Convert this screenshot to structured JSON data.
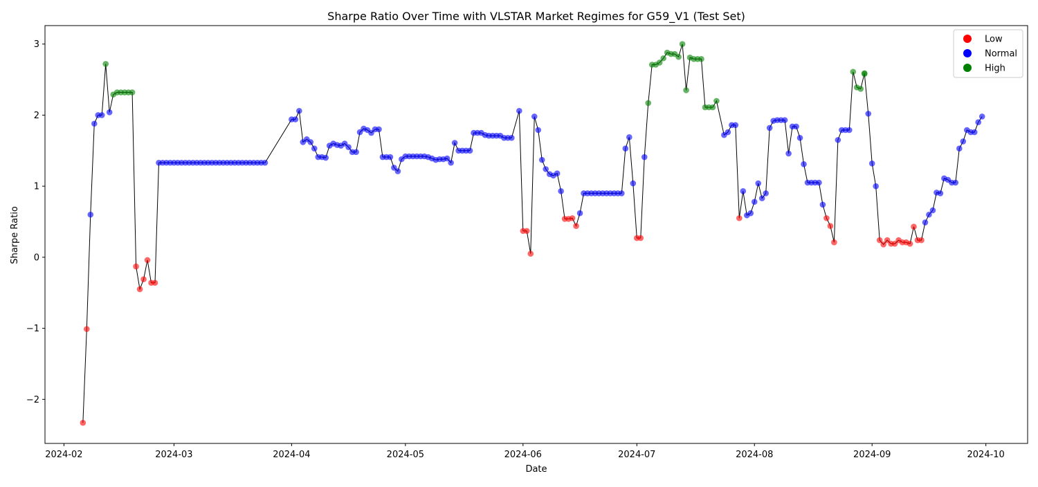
{
  "chart_data": {
    "type": "scatter",
    "title": "Sharpe Ratio Over Time with VLSTAR Market Regimes for G59_V1 (Test Set)",
    "xlabel": "Date",
    "ylabel": "Sharpe Ratio",
    "ylim": [
      -2.62,
      3.26
    ],
    "xlim": [
      "2024-01-27",
      "2024-10-12"
    ],
    "y_ticks": [
      -2,
      -1,
      0,
      1,
      2,
      3
    ],
    "y_tick_labels": [
      "−2",
      "−1",
      "0",
      "1",
      "2",
      "3"
    ],
    "x_ticks": [
      "2024-02-01",
      "2024-03-01",
      "2024-04-01",
      "2024-05-01",
      "2024-06-01",
      "2024-07-01",
      "2024-08-01",
      "2024-09-01",
      "2024-10-01"
    ],
    "x_tick_labels": [
      "2024-02",
      "2024-03",
      "2024-04",
      "2024-05",
      "2024-06",
      "2024-07",
      "2024-08",
      "2024-09",
      "2024-10"
    ],
    "grid": false,
    "legend_position": "top-right",
    "line_color": "#000000",
    "regimes": [
      {
        "name": "Low",
        "color": "#ff0000"
      },
      {
        "name": "Normal",
        "color": "#0000ff"
      },
      {
        "name": "High",
        "color": "#008000"
      }
    ],
    "series": [
      {
        "name": "Low",
        "color": "#ff0000",
        "points": [
          [
            "2024-02-06",
            -2.33
          ],
          [
            "2024-02-07",
            -1.01
          ],
          [
            "2024-02-20",
            -0.13
          ],
          [
            "2024-02-21",
            -0.45
          ],
          [
            "2024-02-22",
            -0.31
          ],
          [
            "2024-02-23",
            -0.04
          ],
          [
            "2024-02-24",
            -0.36
          ],
          [
            "2024-02-25",
            -0.36
          ],
          [
            "2024-06-01",
            0.37
          ],
          [
            "2024-06-02",
            0.37
          ],
          [
            "2024-06-03",
            0.05
          ],
          [
            "2024-06-12",
            0.54
          ],
          [
            "2024-06-13",
            0.54
          ],
          [
            "2024-06-14",
            0.55
          ],
          [
            "2024-06-15",
            0.44
          ],
          [
            "2024-07-01",
            0.27
          ],
          [
            "2024-07-02",
            0.27
          ],
          [
            "2024-07-28",
            0.55
          ],
          [
            "2024-08-20",
            0.55
          ],
          [
            "2024-08-21",
            0.44
          ],
          [
            "2024-08-22",
            0.21
          ],
          [
            "2024-09-03",
            0.24
          ],
          [
            "2024-09-04",
            0.18
          ],
          [
            "2024-09-05",
            0.24
          ],
          [
            "2024-09-06",
            0.19
          ],
          [
            "2024-09-07",
            0.19
          ],
          [
            "2024-09-08",
            0.24
          ],
          [
            "2024-09-09",
            0.21
          ],
          [
            "2024-09-10",
            0.21
          ],
          [
            "2024-09-11",
            0.19
          ],
          [
            "2024-09-12",
            0.43
          ],
          [
            "2024-09-13",
            0.24
          ],
          [
            "2024-09-14",
            0.24
          ]
        ]
      },
      {
        "name": "Normal",
        "color": "#0000ff",
        "points": [
          [
            "2024-02-08",
            0.6
          ],
          [
            "2024-02-09",
            1.88
          ],
          [
            "2024-02-10",
            2.0
          ],
          [
            "2024-02-11",
            2.0
          ],
          [
            "2024-02-13",
            2.04
          ],
          [
            "2024-02-26",
            1.33
          ],
          [
            "2024-02-27",
            1.33
          ],
          [
            "2024-02-28",
            1.33
          ],
          [
            "2024-02-29",
            1.33
          ],
          [
            "2024-03-01",
            1.33
          ],
          [
            "2024-03-02",
            1.33
          ],
          [
            "2024-03-03",
            1.33
          ],
          [
            "2024-03-04",
            1.33
          ],
          [
            "2024-03-05",
            1.33
          ],
          [
            "2024-03-06",
            1.33
          ],
          [
            "2024-03-07",
            1.33
          ],
          [
            "2024-03-08",
            1.33
          ],
          [
            "2024-03-09",
            1.33
          ],
          [
            "2024-03-10",
            1.33
          ],
          [
            "2024-03-11",
            1.33
          ],
          [
            "2024-03-12",
            1.33
          ],
          [
            "2024-03-13",
            1.33
          ],
          [
            "2024-03-14",
            1.33
          ],
          [
            "2024-03-15",
            1.33
          ],
          [
            "2024-03-16",
            1.33
          ],
          [
            "2024-03-17",
            1.33
          ],
          [
            "2024-03-18",
            1.33
          ],
          [
            "2024-03-19",
            1.33
          ],
          [
            "2024-03-20",
            1.33
          ],
          [
            "2024-03-21",
            1.33
          ],
          [
            "2024-03-22",
            1.33
          ],
          [
            "2024-03-23",
            1.33
          ],
          [
            "2024-03-24",
            1.33
          ],
          [
            "2024-03-25",
            1.33
          ],
          [
            "2024-04-01",
            1.94
          ],
          [
            "2024-04-02",
            1.94
          ],
          [
            "2024-04-03",
            2.06
          ],
          [
            "2024-04-04",
            1.62
          ],
          [
            "2024-04-05",
            1.66
          ],
          [
            "2024-04-06",
            1.62
          ],
          [
            "2024-04-07",
            1.53
          ],
          [
            "2024-04-08",
            1.41
          ],
          [
            "2024-04-09",
            1.41
          ],
          [
            "2024-04-10",
            1.4
          ],
          [
            "2024-04-11",
            1.57
          ],
          [
            "2024-04-12",
            1.6
          ],
          [
            "2024-04-13",
            1.58
          ],
          [
            "2024-04-14",
            1.57
          ],
          [
            "2024-04-15",
            1.6
          ],
          [
            "2024-04-16",
            1.55
          ],
          [
            "2024-04-17",
            1.48
          ],
          [
            "2024-04-18",
            1.48
          ],
          [
            "2024-04-19",
            1.76
          ],
          [
            "2024-04-20",
            1.81
          ],
          [
            "2024-04-21",
            1.79
          ],
          [
            "2024-04-22",
            1.75
          ],
          [
            "2024-04-23",
            1.8
          ],
          [
            "2024-04-24",
            1.8
          ],
          [
            "2024-04-25",
            1.41
          ],
          [
            "2024-04-26",
            1.41
          ],
          [
            "2024-04-27",
            1.41
          ],
          [
            "2024-04-28",
            1.26
          ],
          [
            "2024-04-29",
            1.21
          ],
          [
            "2024-04-30",
            1.38
          ],
          [
            "2024-05-01",
            1.42
          ],
          [
            "2024-05-02",
            1.42
          ],
          [
            "2024-05-03",
            1.42
          ],
          [
            "2024-05-04",
            1.42
          ],
          [
            "2024-05-05",
            1.42
          ],
          [
            "2024-05-06",
            1.42
          ],
          [
            "2024-05-07",
            1.41
          ],
          [
            "2024-05-08",
            1.39
          ],
          [
            "2024-05-09",
            1.37
          ],
          [
            "2024-05-10",
            1.38
          ],
          [
            "2024-05-11",
            1.38
          ],
          [
            "2024-05-12",
            1.39
          ],
          [
            "2024-05-13",
            1.33
          ],
          [
            "2024-05-14",
            1.61
          ],
          [
            "2024-05-15",
            1.5
          ],
          [
            "2024-05-16",
            1.5
          ],
          [
            "2024-05-17",
            1.5
          ],
          [
            "2024-05-18",
            1.5
          ],
          [
            "2024-05-19",
            1.75
          ],
          [
            "2024-05-20",
            1.75
          ],
          [
            "2024-05-21",
            1.75
          ],
          [
            "2024-05-22",
            1.72
          ],
          [
            "2024-05-23",
            1.71
          ],
          [
            "2024-05-24",
            1.71
          ],
          [
            "2024-05-25",
            1.71
          ],
          [
            "2024-05-26",
            1.71
          ],
          [
            "2024-05-27",
            1.68
          ],
          [
            "2024-05-28",
            1.68
          ],
          [
            "2024-05-29",
            1.68
          ],
          [
            "2024-05-31",
            2.06
          ],
          [
            "2024-06-04",
            1.98
          ],
          [
            "2024-06-05",
            1.79
          ],
          [
            "2024-06-06",
            1.37
          ],
          [
            "2024-06-07",
            1.24
          ],
          [
            "2024-06-08",
            1.17
          ],
          [
            "2024-06-09",
            1.15
          ],
          [
            "2024-06-10",
            1.18
          ],
          [
            "2024-06-11",
            0.93
          ],
          [
            "2024-06-16",
            0.62
          ],
          [
            "2024-06-17",
            0.9
          ],
          [
            "2024-06-18",
            0.9
          ],
          [
            "2024-06-19",
            0.9
          ],
          [
            "2024-06-20",
            0.9
          ],
          [
            "2024-06-21",
            0.9
          ],
          [
            "2024-06-22",
            0.9
          ],
          [
            "2024-06-23",
            0.9
          ],
          [
            "2024-06-24",
            0.9
          ],
          [
            "2024-06-25",
            0.9
          ],
          [
            "2024-06-26",
            0.9
          ],
          [
            "2024-06-27",
            0.9
          ],
          [
            "2024-06-28",
            1.53
          ],
          [
            "2024-06-29",
            1.69
          ],
          [
            "2024-06-30",
            1.04
          ],
          [
            "2024-07-03",
            1.41
          ],
          [
            "2024-07-24",
            1.72
          ],
          [
            "2024-07-25",
            1.76
          ],
          [
            "2024-07-26",
            1.86
          ],
          [
            "2024-07-27",
            1.86
          ],
          [
            "2024-07-29",
            0.93
          ],
          [
            "2024-07-30",
            0.59
          ],
          [
            "2024-07-31",
            0.62
          ],
          [
            "2024-08-01",
            0.78
          ],
          [
            "2024-08-02",
            1.04
          ],
          [
            "2024-08-03",
            0.83
          ],
          [
            "2024-08-04",
            0.9
          ],
          [
            "2024-08-05",
            1.82
          ],
          [
            "2024-08-06",
            1.92
          ],
          [
            "2024-08-07",
            1.93
          ],
          [
            "2024-08-08",
            1.93
          ],
          [
            "2024-08-09",
            1.93
          ],
          [
            "2024-08-10",
            1.46
          ],
          [
            "2024-08-11",
            1.84
          ],
          [
            "2024-08-12",
            1.84
          ],
          [
            "2024-08-13",
            1.68
          ],
          [
            "2024-08-14",
            1.31
          ],
          [
            "2024-08-15",
            1.05
          ],
          [
            "2024-08-16",
            1.05
          ],
          [
            "2024-08-17",
            1.05
          ],
          [
            "2024-08-18",
            1.05
          ],
          [
            "2024-08-19",
            0.74
          ],
          [
            "2024-08-23",
            1.65
          ],
          [
            "2024-08-24",
            1.79
          ],
          [
            "2024-08-25",
            1.79
          ],
          [
            "2024-08-26",
            1.79
          ],
          [
            "2024-08-31",
            2.02
          ],
          [
            "2024-09-01",
            1.32
          ],
          [
            "2024-09-02",
            1.0
          ],
          [
            "2024-09-15",
            0.49
          ],
          [
            "2024-09-16",
            0.6
          ],
          [
            "2024-09-17",
            0.66
          ],
          [
            "2024-09-18",
            0.91
          ],
          [
            "2024-09-19",
            0.9
          ],
          [
            "2024-09-20",
            1.11
          ],
          [
            "2024-09-21",
            1.09
          ],
          [
            "2024-09-22",
            1.05
          ],
          [
            "2024-09-23",
            1.05
          ],
          [
            "2024-09-24",
            1.53
          ],
          [
            "2024-09-25",
            1.63
          ],
          [
            "2024-09-26",
            1.79
          ],
          [
            "2024-09-27",
            1.76
          ],
          [
            "2024-09-28",
            1.76
          ],
          [
            "2024-09-29",
            1.9
          ],
          [
            "2024-09-30",
            1.98
          ]
        ]
      },
      {
        "name": "High",
        "color": "#008000",
        "points": [
          [
            "2024-02-12",
            2.72
          ],
          [
            "2024-02-14",
            2.29
          ],
          [
            "2024-02-15",
            2.32
          ],
          [
            "2024-02-16",
            2.32
          ],
          [
            "2024-02-17",
            2.32
          ],
          [
            "2024-02-18",
            2.32
          ],
          [
            "2024-02-19",
            2.32
          ],
          [
            "2024-07-04",
            2.17
          ],
          [
            "2024-07-05",
            2.71
          ],
          [
            "2024-07-06",
            2.71
          ],
          [
            "2024-07-07",
            2.74
          ],
          [
            "2024-07-08",
            2.8
          ],
          [
            "2024-07-09",
            2.88
          ],
          [
            "2024-07-10",
            2.86
          ],
          [
            "2024-07-11",
            2.86
          ],
          [
            "2024-07-12",
            2.82
          ],
          [
            "2024-07-13",
            3.0
          ],
          [
            "2024-07-14",
            2.35
          ],
          [
            "2024-07-15",
            2.81
          ],
          [
            "2024-07-16",
            2.79
          ],
          [
            "2024-07-17",
            2.79
          ],
          [
            "2024-07-18",
            2.79
          ],
          [
            "2024-07-19",
            2.11
          ],
          [
            "2024-07-20",
            2.11
          ],
          [
            "2024-07-21",
            2.11
          ],
          [
            "2024-07-22",
            2.2
          ],
          [
            "2024-08-27",
            2.61
          ],
          [
            "2024-08-28",
            2.39
          ],
          [
            "2024-08-29",
            2.37
          ],
          [
            "2024-08-30",
            2.59
          ],
          [
            "2024-08-30",
            2.58
          ]
        ]
      }
    ]
  }
}
